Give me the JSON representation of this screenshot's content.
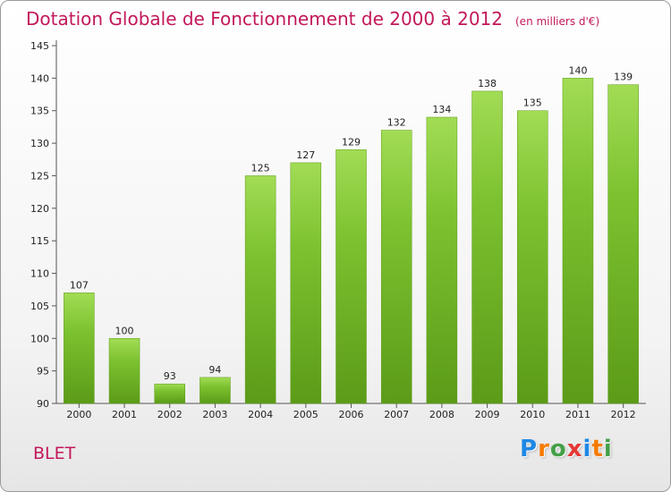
{
  "chart_data": {
    "type": "bar",
    "title": "Dotation Globale de Fonctionnement de 2000 à 2012",
    "subtitle": "(en milliers d'€)",
    "xlabel": "",
    "ylabel": "",
    "categories": [
      "2000",
      "2001",
      "2002",
      "2003",
      "2004",
      "2005",
      "2006",
      "2007",
      "2008",
      "2009",
      "2010",
      "2011",
      "2012"
    ],
    "values": [
      107,
      100,
      93,
      94,
      125,
      127,
      129,
      132,
      134,
      138,
      135,
      140,
      139
    ],
    "ylim": [
      90,
      145
    ],
    "yticks": [
      90,
      95,
      100,
      105,
      110,
      115,
      120,
      125,
      130,
      135,
      140,
      145
    ],
    "grid": false,
    "legend": "none",
    "bar_color": "#7cc230",
    "bar_color_light": "#a2dc55",
    "bar_color_dark": "#5b9b18"
  },
  "footer": {
    "place": "BLET",
    "logo_letters": [
      "P",
      "r",
      "o",
      "x",
      "i",
      "t",
      "i"
    ],
    "logo_colors": [
      "#1e88e5",
      "#f57c00",
      "#43a047",
      "#e53935",
      "#1e88e5",
      "#f57c00",
      "#43a047"
    ]
  },
  "colors": {
    "title": "#c2185b",
    "axis": "#555555"
  }
}
